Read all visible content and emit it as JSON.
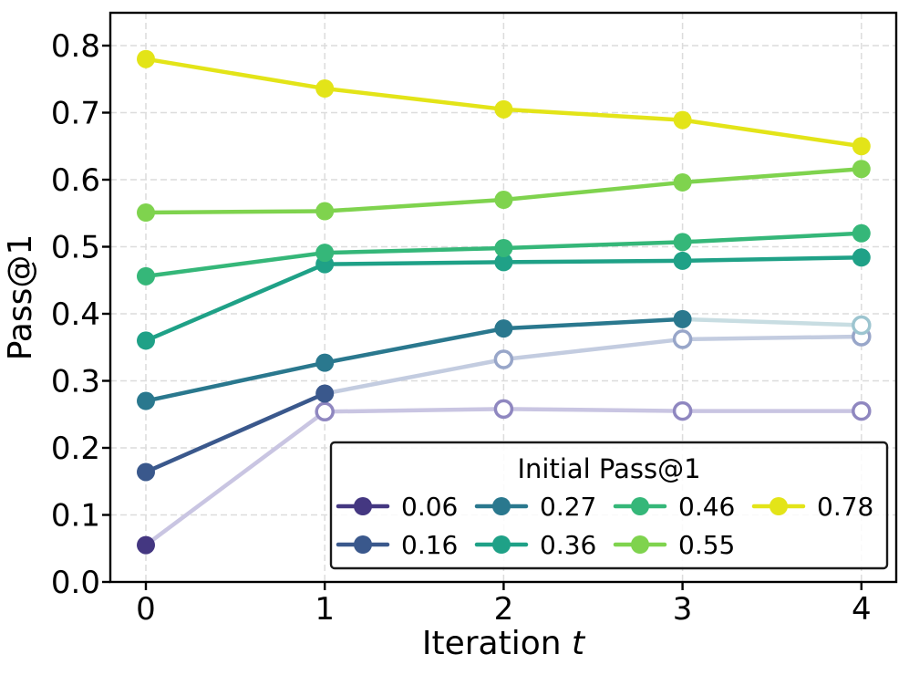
{
  "chart_data": {
    "type": "line",
    "title": "",
    "xlabel": "Iteration t",
    "xlabel_prefix": "Iteration ",
    "xlabel_italic": "t",
    "ylabel": "Pass@1",
    "x": [
      0,
      1,
      2,
      3,
      4
    ],
    "xtick_labels": [
      "0",
      "1",
      "2",
      "3",
      "4"
    ],
    "yticks": [
      0.0,
      0.1,
      0.2,
      0.3,
      0.4,
      0.5,
      0.6,
      0.7,
      0.8
    ],
    "ytick_labels": [
      "0.0",
      "0.1",
      "0.2",
      "0.3",
      "0.4",
      "0.5",
      "0.6",
      "0.7",
      "0.8"
    ],
    "xlim": [
      -0.2,
      4.2
    ],
    "ylim": [
      0,
      0.849
    ],
    "grid": true,
    "grid_color": "#dcdcdc",
    "axis_color": "#000000",
    "legend": {
      "title": "Initial Pass@1",
      "position": "lower right",
      "ncols": 4,
      "rows": [
        [
          "0.06",
          "0.27",
          "0.46",
          "0.78"
        ],
        [
          "0.16",
          "0.36",
          "0.55"
        ]
      ]
    },
    "series": [
      {
        "name": "0.06",
        "color": "#443781",
        "faded_line_color": "#c9c5e2",
        "hollow_ring_color": "#8f87c0",
        "values": [
          0.055,
          0.254,
          0.258,
          0.255,
          0.255
        ],
        "marker_filled": [
          true,
          false,
          false,
          false,
          false
        ],
        "segment_full": [
          false,
          false,
          false,
          false
        ]
      },
      {
        "name": "0.16",
        "color": "#3a588c",
        "faded_line_color": "#c3cce0",
        "hollow_ring_color": "#98a6c9",
        "values": [
          0.164,
          0.281,
          0.332,
          0.362,
          0.366
        ],
        "marker_filled": [
          true,
          true,
          false,
          false,
          false
        ],
        "segment_full": [
          true,
          false,
          false,
          false
        ]
      },
      {
        "name": "0.27",
        "color": "#2a788e",
        "faded_line_color": "#c8dde2",
        "hollow_ring_color": "#9dc5d0",
        "values": [
          0.27,
          0.327,
          0.378,
          0.392,
          0.383
        ],
        "marker_filled": [
          true,
          true,
          true,
          true,
          false
        ],
        "segment_full": [
          true,
          true,
          true,
          false
        ]
      },
      {
        "name": "0.36",
        "color": "#1fa187",
        "faded_line_color": "#1fa187",
        "hollow_ring_color": "#1fa187",
        "values": [
          0.36,
          0.474,
          0.477,
          0.479,
          0.484
        ],
        "marker_filled": [
          true,
          true,
          true,
          true,
          true
        ],
        "segment_full": [
          true,
          true,
          true,
          true
        ]
      },
      {
        "name": "0.46",
        "color": "#35b779",
        "faded_line_color": "#35b779",
        "hollow_ring_color": "#35b779",
        "values": [
          0.456,
          0.491,
          0.498,
          0.507,
          0.52
        ],
        "marker_filled": [
          true,
          true,
          true,
          true,
          true
        ],
        "segment_full": [
          true,
          true,
          true,
          true
        ]
      },
      {
        "name": "0.55",
        "color": "#7fd34e",
        "faded_line_color": "#7fd34e",
        "hollow_ring_color": "#7fd34e",
        "values": [
          0.551,
          0.553,
          0.57,
          0.596,
          0.616
        ],
        "marker_filled": [
          true,
          true,
          true,
          true,
          true
        ],
        "segment_full": [
          true,
          true,
          true,
          true
        ]
      },
      {
        "name": "0.78",
        "color": "#e3e418",
        "faded_line_color": "#e3e418",
        "hollow_ring_color": "#e3e418",
        "values": [
          0.78,
          0.736,
          0.705,
          0.689,
          0.65
        ],
        "marker_filled": [
          true,
          true,
          true,
          true,
          true
        ],
        "segment_full": [
          true,
          true,
          true,
          true
        ]
      }
    ]
  }
}
